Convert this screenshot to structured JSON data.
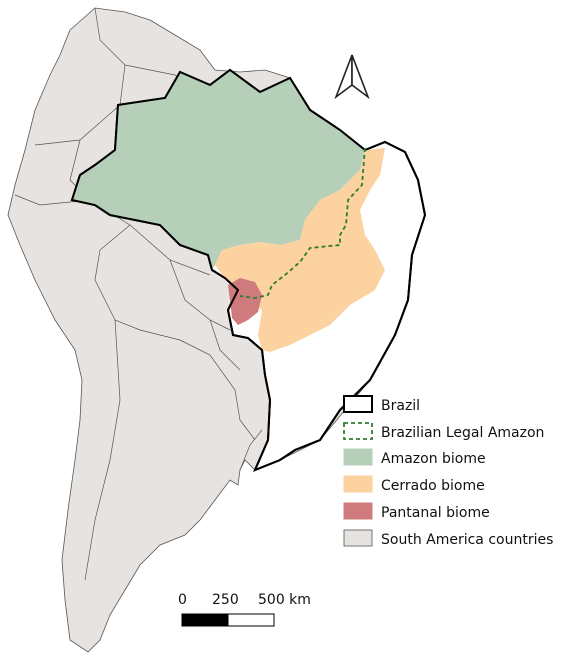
{
  "colors": {
    "land": "#e6e3e0",
    "border": "#555555",
    "brazil_fill": "#ffffff",
    "brazil_outline": "#000000",
    "amazon": "#b5cfb8",
    "cerrado": "#fcd2a0",
    "pantanal": "#cf7b7e",
    "legal_amazon_line": "#2e7d32"
  },
  "north_arrow": {
    "icon": "north-arrow-icon"
  },
  "legend": {
    "items": [
      {
        "label": "Brazil",
        "symbol": "outline"
      },
      {
        "label": "Brazilian Legal Amazon",
        "symbol": "dashed"
      },
      {
        "label": "Amazon biome",
        "symbol": "fill-amazon"
      },
      {
        "label": "Cerrado biome",
        "symbol": "fill-cerrado"
      },
      {
        "label": "Pantanal biome",
        "symbol": "fill-pantanal"
      },
      {
        "label": "South America countries",
        "symbol": "fill-land"
      }
    ]
  },
  "scale_bar": {
    "labels": [
      "0",
      "250",
      "500 km"
    ]
  }
}
